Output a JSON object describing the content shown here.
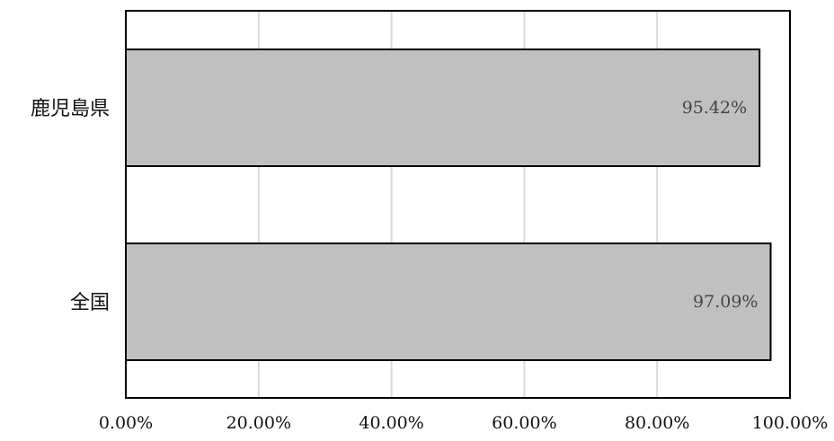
{
  "chart_data": {
    "type": "bar",
    "orientation": "horizontal",
    "categories": [
      "鹿児島県",
      "全国"
    ],
    "values": [
      95.42,
      97.09
    ],
    "data_labels": [
      "95.42%",
      "97.09%"
    ],
    "xlim": [
      0,
      100
    ],
    "x_ticks": [
      0,
      20,
      40,
      60,
      80,
      100
    ],
    "x_tick_labels": [
      "0.00%",
      "20.00%",
      "40.00%",
      "60.00%",
      "80.00%",
      "100.00%"
    ],
    "grid": "vertical",
    "legend": "none",
    "title": "",
    "xlabel": "",
    "ylabel": ""
  },
  "colors": {
    "bar_fill": "#c0c0c0",
    "bar_stroke": "#000000",
    "grid": "#d9d9d9",
    "frame": "#000000"
  }
}
